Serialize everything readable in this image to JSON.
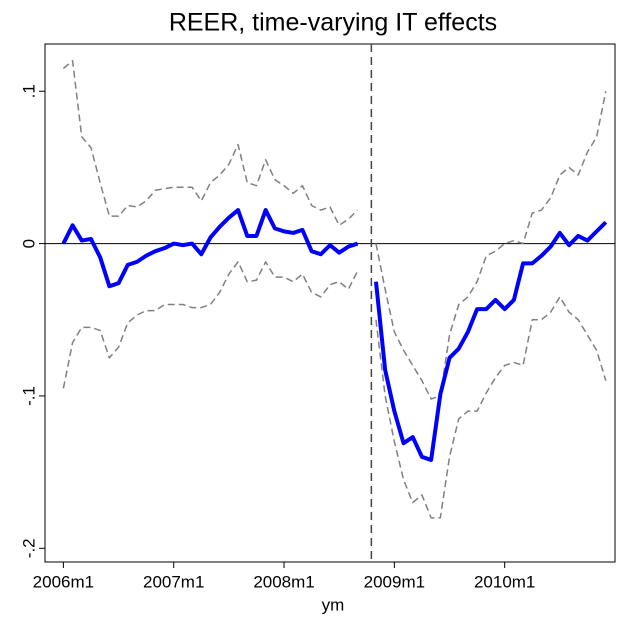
{
  "chart_data": {
    "type": "line",
    "title": "REER, time-varying IT effects",
    "x_label": "ym",
    "x": [
      552,
      553,
      554,
      555,
      556,
      557,
      558,
      559,
      560,
      561,
      562,
      563,
      564,
      565,
      566,
      567,
      568,
      569,
      570,
      571,
      572,
      573,
      574,
      575,
      576,
      577,
      578,
      579,
      580,
      581,
      582,
      583,
      584,
      585,
      586,
      587,
      588,
      589,
      590,
      591,
      592,
      593,
      594,
      595,
      596,
      597,
      598,
      599,
      600,
      601,
      602,
      603,
      604,
      605,
      606,
      607,
      608,
      609,
      610,
      611
    ],
    "series": [
      {
        "color": "#808080",
        "dashed": true,
        "width": 1.5,
        "values": [
          0.115,
          0.12,
          0.07,
          0.063,
          0.04,
          0.018,
          0.018,
          0.025,
          0.024,
          0.028,
          0.035,
          0.036,
          0.037,
          0.037,
          0.037,
          0.028,
          0.04,
          0.045,
          0.052,
          0.065,
          0.04,
          0.038,
          0.055,
          0.042,
          0.038,
          0.033,
          0.038,
          0.025,
          0.022,
          0.024,
          0.012,
          0.016,
          0.022,
          null,
          0,
          -0.03,
          -0.058,
          -0.07,
          -0.08,
          -0.09,
          -0.102,
          -0.1,
          -0.06,
          -0.04,
          -0.035,
          -0.025,
          -0.008,
          -0.005,
          0,
          0.002,
          0,
          0.02,
          0.022,
          0.03,
          0.045,
          0.05,
          0.045,
          0.06,
          0.07,
          0.1
        ]
      },
      {
        "color": "#808080",
        "dashed": true,
        "width": 1.5,
        "values": [
          -0.095,
          -0.065,
          -0.055,
          -0.055,
          -0.057,
          -0.075,
          -0.068,
          -0.052,
          -0.047,
          -0.044,
          -0.044,
          -0.04,
          -0.04,
          -0.04,
          -0.042,
          -0.042,
          -0.04,
          -0.032,
          -0.02,
          -0.012,
          -0.025,
          -0.024,
          -0.012,
          -0.022,
          -0.022,
          -0.025,
          -0.02,
          -0.032,
          -0.035,
          -0.027,
          -0.025,
          -0.03,
          -0.018,
          null,
          -0.05,
          -0.1,
          -0.13,
          -0.155,
          -0.17,
          -0.165,
          -0.18,
          -0.18,
          -0.14,
          -0.115,
          -0.11,
          -0.11,
          -0.098,
          -0.088,
          -0.08,
          -0.078,
          -0.08,
          -0.05,
          -0.05,
          -0.045,
          -0.035,
          -0.045,
          -0.05,
          -0.06,
          -0.07,
          -0.09
        ]
      },
      {
        "color": "#0000ff",
        "dashed": false,
        "width": 4,
        "values": [
          0,
          0.012,
          0.002,
          0.003,
          -0.009,
          -0.028,
          -0.026,
          -0.014,
          -0.012,
          -0.008,
          -0.005,
          -0.003,
          0,
          -0.001,
          0,
          -0.007,
          0.004,
          0.011,
          0.017,
          0.022,
          0.005,
          0.005,
          0.022,
          0.01,
          0.008,
          0.007,
          0.009,
          -0.005,
          -0.007,
          -0.001,
          -0.006,
          -0.002,
          0,
          null,
          -0.025,
          -0.083,
          -0.11,
          -0.131,
          -0.127,
          -0.14,
          -0.142,
          -0.099,
          -0.075,
          -0.069,
          -0.058,
          -0.043,
          -0.043,
          -0.037,
          -0.043,
          -0.037,
          -0.013,
          -0.013,
          -0.008,
          -0.002,
          0.007,
          -0.001,
          0.005,
          0.002,
          0.008,
          0.014
        ]
      }
    ],
    "xlim": [
      550,
      612
    ],
    "xticks": [
      {
        "value": 552,
        "label": "2006m1"
      },
      {
        "value": 564,
        "label": "2007m1"
      },
      {
        "value": 576,
        "label": "2008m1"
      },
      {
        "value": 588,
        "label": "2009m1"
      },
      {
        "value": 600,
        "label": "2010m1"
      }
    ],
    "ylim": [
      -0.209,
      0.131
    ],
    "yticks": [
      {
        "value": -0.2,
        "label": "-.2"
      },
      {
        "value": -0.1,
        "label": "-.1"
      },
      0,
      {
        "value": 0.1,
        "label": ".1"
      }
    ],
    "hline": 0,
    "vline": 585.5,
    "grid": false
  }
}
